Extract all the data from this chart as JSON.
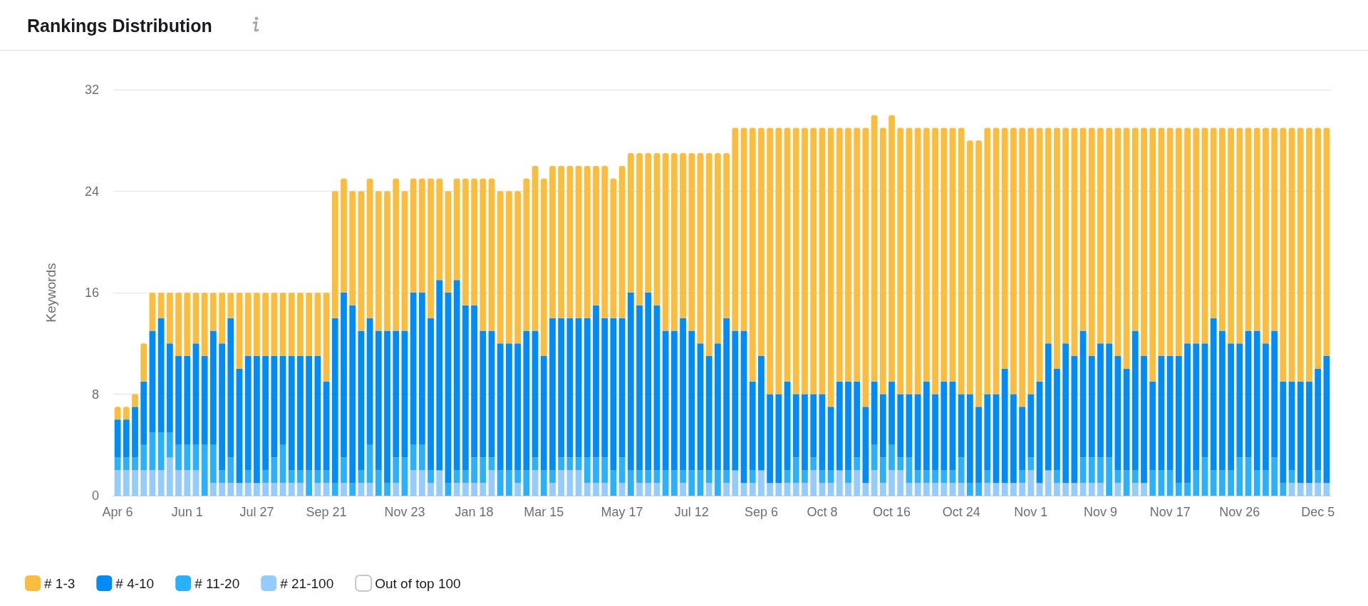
{
  "chart_data": {
    "type": "bar",
    "title": "Rankings Distribution",
    "ylabel": "Keywords",
    "categories": [
      "Apr 6",
      null,
      null,
      null,
      null,
      null,
      null,
      null,
      "Jun 1",
      null,
      null,
      null,
      null,
      null,
      null,
      null,
      "Jul 27",
      null,
      null,
      null,
      null,
      null,
      null,
      null,
      "Sep 21",
      null,
      null,
      null,
      null,
      null,
      null,
      null,
      null,
      "Nov 23",
      null,
      null,
      null,
      null,
      null,
      null,
      null,
      "Jan 18",
      null,
      null,
      null,
      null,
      null,
      null,
      null,
      "Mar 15",
      null,
      null,
      null,
      null,
      null,
      null,
      null,
      null,
      "May 17",
      null,
      null,
      null,
      null,
      null,
      null,
      null,
      "Jul 12",
      null,
      null,
      null,
      null,
      null,
      null,
      null,
      "Sep 6",
      null,
      null,
      null,
      null,
      null,
      null,
      "Oct 8",
      null,
      null,
      null,
      null,
      null,
      null,
      null,
      "Oct 16",
      null,
      null,
      null,
      null,
      null,
      null,
      null,
      "Oct 24",
      null,
      null,
      null,
      null,
      null,
      null,
      null,
      "Nov 1",
      null,
      null,
      null,
      null,
      null,
      null,
      null,
      "Nov 9",
      null,
      null,
      null,
      null,
      null,
      null,
      null,
      "Nov 17",
      null,
      null,
      null,
      null,
      null,
      null,
      null,
      "Nov 26",
      null,
      null,
      null,
      null,
      null,
      null,
      null,
      null,
      "Dec 5",
      null
    ],
    "stacked": true,
    "series": [
      {
        "name": "Out of top 100",
        "color": "#ffffff",
        "values": [
          null,
          null,
          null,
          null,
          null,
          null,
          null,
          null,
          null,
          null,
          null,
          null,
          null,
          null,
          null,
          null,
          null,
          null,
          null,
          null,
          null,
          null,
          null,
          null,
          null,
          null,
          null,
          null,
          null,
          null,
          null,
          null,
          null,
          null,
          null,
          null,
          null,
          null,
          null,
          null,
          null,
          null,
          null,
          null,
          null,
          null,
          null,
          null,
          null,
          null,
          null,
          null,
          null,
          null,
          null,
          null,
          null,
          null,
          null,
          null,
          null,
          null,
          null,
          null,
          null,
          null,
          null,
          null,
          null,
          null,
          null,
          null,
          null,
          null,
          null,
          null,
          null,
          null,
          null,
          null,
          null,
          null,
          null,
          null,
          null,
          null,
          null,
          null,
          null,
          null,
          null,
          null,
          null,
          null,
          null,
          null,
          null,
          null,
          null,
          null,
          null,
          null,
          null,
          null,
          null,
          null,
          null,
          null,
          null,
          null,
          null,
          null,
          null,
          null,
          null,
          null,
          null,
          null,
          null,
          null,
          null,
          null,
          null,
          null,
          null,
          null,
          null,
          null,
          null,
          null,
          null,
          null,
          null,
          null,
          null,
          null,
          null,
          null,
          null,
          null
        ]
      },
      {
        "name": "# 21-100",
        "color": "#95ccfd",
        "values": [
          2,
          2,
          2,
          2,
          2,
          2,
          3,
          2,
          2,
          2,
          0,
          1,
          1,
          1,
          1,
          1,
          1,
          1,
          1,
          1,
          1,
          1,
          0,
          1,
          1,
          0,
          1,
          0,
          1,
          1,
          0,
          0,
          1,
          0,
          2,
          2,
          1,
          2,
          0,
          1,
          1,
          1,
          1,
          2,
          0,
          0,
          1,
          0,
          2,
          0,
          1,
          2,
          2,
          2,
          1,
          1,
          1,
          0,
          1,
          0,
          1,
          1,
          1,
          0,
          0,
          1,
          0,
          0,
          1,
          0,
          1,
          2,
          1,
          1,
          2,
          1,
          1,
          1,
          1,
          1,
          2,
          1,
          1,
          2,
          1,
          2,
          1,
          2,
          1,
          2,
          2,
          1,
          1,
          1,
          1,
          1,
          1,
          1,
          0,
          0,
          1,
          1,
          1,
          1,
          1,
          2,
          1,
          2,
          1,
          1,
          1,
          1,
          1,
          1,
          0,
          1,
          0,
          1,
          1,
          0,
          0,
          0,
          0,
          0,
          0,
          0,
          0,
          0,
          0,
          0,
          0,
          0,
          0,
          0,
          0,
          1,
          1,
          1,
          1,
          1
        ]
      },
      {
        "name": "# 11-20",
        "color": "#2bb1fc",
        "values": [
          1,
          1,
          1,
          2,
          3,
          3,
          2,
          2,
          2,
          2,
          4,
          3,
          1,
          2,
          0,
          1,
          0,
          1,
          2,
          3,
          1,
          1,
          2,
          1,
          1,
          1,
          2,
          1,
          1,
          3,
          2,
          1,
          2,
          3,
          2,
          2,
          1,
          0,
          1,
          1,
          1,
          2,
          2,
          1,
          2,
          2,
          1,
          2,
          1,
          2,
          1,
          1,
          1,
          1,
          2,
          2,
          2,
          2,
          2,
          2,
          1,
          1,
          1,
          2,
          2,
          1,
          2,
          2,
          1,
          2,
          1,
          0,
          0,
          1,
          0,
          0,
          0,
          1,
          2,
          1,
          1,
          1,
          1,
          0,
          1,
          1,
          0,
          2,
          2,
          2,
          1,
          2,
          1,
          1,
          1,
          1,
          1,
          2,
          1,
          1,
          1,
          0,
          0,
          0,
          1,
          1,
          0,
          0,
          1,
          0,
          0,
          2,
          2,
          2,
          3,
          1,
          2,
          1,
          0,
          2,
          2,
          2,
          1,
          1,
          2,
          3,
          2,
          2,
          2,
          3,
          3,
          2,
          2,
          3,
          1,
          1,
          0,
          0,
          1,
          0
        ]
      },
      {
        "name": "# 4-10",
        "color": "#008bf6",
        "values": [
          3,
          3,
          4,
          5,
          8,
          9,
          7,
          7,
          7,
          8,
          7,
          9,
          10,
          11,
          9,
          9,
          10,
          9,
          8,
          7,
          9,
          9,
          9,
          9,
          7,
          13,
          13,
          14,
          11,
          10,
          11,
          12,
          10,
          10,
          12,
          12,
          12,
          15,
          15,
          15,
          13,
          12,
          10,
          10,
          10,
          10,
          10,
          11,
          10,
          9,
          12,
          11,
          11,
          11,
          11,
          12,
          11,
          12,
          11,
          14,
          13,
          14,
          13,
          11,
          11,
          12,
          11,
          10,
          9,
          10,
          12,
          11,
          12,
          7,
          9,
          7,
          7,
          7,
          5,
          6,
          5,
          6,
          5,
          7,
          7,
          6,
          6,
          5,
          5,
          5,
          5,
          5,
          6,
          7,
          6,
          7,
          7,
          5,
          7,
          6,
          6,
          7,
          9,
          7,
          5,
          5,
          8,
          10,
          8,
          11,
          10,
          10,
          8,
          9,
          9,
          9,
          8,
          11,
          10,
          7,
          9,
          9,
          10,
          11,
          10,
          9,
          12,
          11,
          10,
          9,
          10,
          11,
          10,
          10,
          8,
          7,
          8,
          8,
          8,
          10
        ]
      },
      {
        "name": "# 1-3",
        "color": "#fcbd3e",
        "values": [
          1,
          1,
          1,
          3,
          3,
          2,
          4,
          5,
          5,
          4,
          5,
          3,
          4,
          2,
          6,
          5,
          5,
          5,
          5,
          5,
          5,
          5,
          5,
          5,
          7,
          10,
          9,
          9,
          11,
          11,
          11,
          11,
          12,
          11,
          9,
          9,
          11,
          8,
          8,
          8,
          10,
          10,
          12,
          12,
          12,
          12,
          12,
          12,
          13,
          14,
          12,
          12,
          12,
          12,
          12,
          11,
          12,
          11,
          12,
          11,
          12,
          11,
          12,
          14,
          14,
          13,
          14,
          15,
          16,
          15,
          13,
          16,
          16,
          20,
          18,
          21,
          21,
          20,
          21,
          21,
          21,
          21,
          22,
          20,
          20,
          20,
          22,
          21,
          21,
          21,
          21,
          21,
          21,
          20,
          21,
          20,
          20,
          21,
          20,
          21,
          21,
          21,
          19,
          21,
          22,
          21,
          20,
          17,
          19,
          17,
          18,
          16,
          18,
          17,
          17,
          18,
          19,
          16,
          18,
          20,
          18,
          18,
          18,
          17,
          17,
          17,
          15,
          16,
          17,
          17,
          16,
          16,
          17,
          16,
          20,
          20,
          20,
          20,
          19,
          18
        ]
      }
    ],
    "ylim": [
      0,
      32
    ],
    "yticks": [
      0,
      8,
      16,
      24,
      32
    ],
    "grid": "y",
    "legend": "bottom left"
  }
}
